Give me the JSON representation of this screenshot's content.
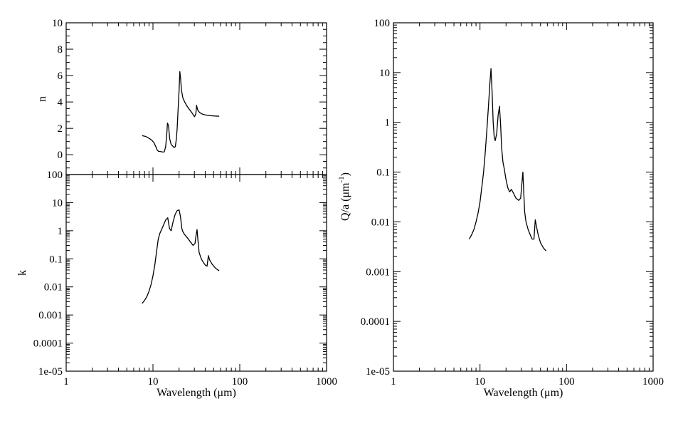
{
  "chart_data": [
    {
      "id": "n_panel",
      "type": "line",
      "xscale": "log",
      "yscale": "linear",
      "xlim": [
        1,
        1000
      ],
      "ylim": [
        -1.5,
        10
      ],
      "ylabel": "n",
      "xlabel": "",
      "yticks": [
        0,
        2,
        4,
        6,
        8,
        10
      ],
      "ytick_labels": [
        "0",
        "2",
        "4",
        "6",
        "8",
        "10"
      ],
      "xticks": [
        1,
        10,
        100,
        1000
      ],
      "xtick_labels": [
        "",
        "",
        "",
        ""
      ],
      "series": [
        {
          "x": [
            7.5,
            8.3,
            9.0,
            9.7,
            10.3,
            10.8,
            11.2,
            11.6,
            12.3,
            13.0,
            13.5,
            14.0,
            14.4,
            14.7,
            15.1,
            15.6,
            16.2,
            17.0,
            17.6,
            18.1,
            18.6,
            19.0,
            19.4,
            20.0,
            20.4,
            20.8,
            21.3,
            22.1,
            23.2,
            24.6,
            26.2,
            28.0,
            30.1,
            31.2,
            31.8,
            32.3,
            33.0,
            34.5,
            37.0,
            40.0,
            43.0,
            46.0,
            50.0,
            54.0,
            58.0
          ],
          "y": [
            1.45,
            1.38,
            1.25,
            1.1,
            0.9,
            0.6,
            0.35,
            0.26,
            0.24,
            0.2,
            0.22,
            0.6,
            1.5,
            2.4,
            2.2,
            1.2,
            0.78,
            0.64,
            0.54,
            0.62,
            1.2,
            2.0,
            3.2,
            4.9,
            6.3,
            5.8,
            4.9,
            4.3,
            4.0,
            3.7,
            3.45,
            3.2,
            2.88,
            3.1,
            3.75,
            3.55,
            3.35,
            3.2,
            3.08,
            3.02,
            2.98,
            2.96,
            2.94,
            2.93,
            2.92
          ]
        }
      ]
    },
    {
      "id": "k_panel",
      "type": "line",
      "xscale": "log",
      "yscale": "log",
      "xlim": [
        1,
        1000
      ],
      "ylim": [
        1e-05,
        100
      ],
      "ylabel": "k",
      "xlabel": "Wavelength (μm)",
      "yticks": [
        1e-05,
        0.0001,
        0.001,
        0.01,
        0.1,
        1,
        10,
        100
      ],
      "ytick_labels": [
        "1e-05",
        "0.0001",
        "0.001",
        "0.01",
        "0.1",
        "1",
        "10",
        "100"
      ],
      "xticks": [
        1,
        10,
        100,
        1000
      ],
      "xtick_labels": [
        "1",
        "10",
        "100",
        "1000"
      ],
      "series": [
        {
          "x": [
            7.5,
            8.0,
            8.5,
            9.0,
            9.5,
            10.0,
            10.5,
            11.0,
            11.5,
            12.0,
            13.0,
            14.0,
            14.8,
            15.5,
            16.2,
            17.0,
            18.0,
            19.0,
            20.0,
            20.8,
            21.5,
            22.0,
            23.0,
            25.0,
            27.0,
            29.0,
            30.5,
            31.5,
            32.2,
            33.0,
            34.0,
            36.0,
            38.0,
            40.0,
            42.0,
            43.5,
            45.0,
            48.0,
            52.0,
            56.0,
            58.0
          ],
          "y": [
            0.0026,
            0.0033,
            0.0045,
            0.007,
            0.012,
            0.025,
            0.06,
            0.18,
            0.5,
            0.8,
            1.4,
            2.4,
            2.9,
            1.2,
            1.0,
            2.0,
            3.8,
            5.2,
            5.5,
            3.0,
            1.2,
            0.95,
            0.75,
            0.55,
            0.4,
            0.3,
            0.35,
            0.75,
            1.1,
            0.45,
            0.17,
            0.1,
            0.075,
            0.06,
            0.055,
            0.13,
            0.09,
            0.065,
            0.048,
            0.04,
            0.038
          ]
        }
      ]
    },
    {
      "id": "qa_panel",
      "type": "line",
      "xscale": "log",
      "yscale": "log",
      "xlim": [
        1,
        1000
      ],
      "ylim": [
        1e-05,
        100
      ],
      "ylabel": "Q/a (μm",
      "ylabel_superscript": "-1",
      "ylabel_close": ")",
      "xlabel": "Wavelength (μm)",
      "yticks": [
        1e-05,
        0.0001,
        0.001,
        0.01,
        0.1,
        1,
        10,
        100
      ],
      "ytick_labels": [
        "1e-05",
        "0.0001",
        "0.001",
        "0.01",
        "0.1",
        "1",
        "10",
        "100"
      ],
      "xticks": [
        1,
        10,
        100,
        1000
      ],
      "xtick_labels": [
        "1",
        "10",
        "100",
        "1000"
      ],
      "series": [
        {
          "x": [
            7.5,
            8.0,
            8.5,
            9.0,
            9.5,
            10.0,
            10.5,
            11.0,
            11.5,
            12.0,
            12.5,
            13.0,
            13.4,
            13.8,
            14.2,
            14.6,
            15.0,
            15.6,
            16.2,
            16.8,
            17.3,
            17.8,
            18.4,
            19.0,
            20.0,
            21.0,
            22.0,
            23.0,
            24.5,
            26.0,
            28.0,
            29.5,
            30.5,
            31.3,
            32.0,
            32.8,
            34.0,
            36.0,
            38.0,
            40.0,
            42.0,
            43.5,
            45.0,
            47.0,
            50.0,
            54.0,
            58.0
          ],
          "y": [
            0.0045,
            0.0055,
            0.007,
            0.01,
            0.015,
            0.025,
            0.05,
            0.1,
            0.25,
            0.7,
            2.0,
            6.0,
            12.0,
            4.0,
            1.0,
            0.5,
            0.43,
            0.6,
            1.4,
            2.1,
            0.9,
            0.3,
            0.16,
            0.12,
            0.07,
            0.048,
            0.04,
            0.045,
            0.037,
            0.03,
            0.027,
            0.03,
            0.06,
            0.1,
            0.04,
            0.016,
            0.01,
            0.007,
            0.0055,
            0.0045,
            0.0045,
            0.011,
            0.008,
            0.0055,
            0.0038,
            0.003,
            0.0026
          ]
        }
      ]
    }
  ]
}
